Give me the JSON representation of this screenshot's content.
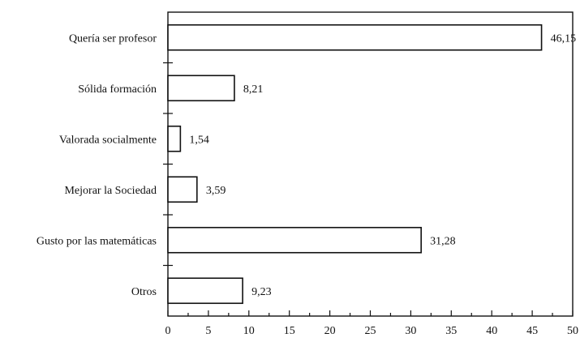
{
  "chart_data": {
    "type": "bar",
    "orientation": "horizontal",
    "categories": [
      "Quería ser profesor",
      "Sólida formación",
      "Valorada socialmente",
      "Mejorar la Sociedad",
      "Gusto por las matemáticas",
      "Otros"
    ],
    "values": [
      46.15,
      8.21,
      1.54,
      3.59,
      31.28,
      9.23
    ],
    "value_labels": [
      "46,15",
      "8,21",
      "1,54",
      "3,59",
      "31,28",
      "9,23"
    ],
    "xticks": [
      0,
      5,
      10,
      15,
      20,
      25,
      30,
      35,
      40,
      45,
      50
    ],
    "xlim": [
      0,
      50
    ],
    "title": "",
    "xlabel": "",
    "ylabel": "",
    "grid": false,
    "bar_fill": "#ffffff",
    "bar_stroke": "#111111"
  }
}
